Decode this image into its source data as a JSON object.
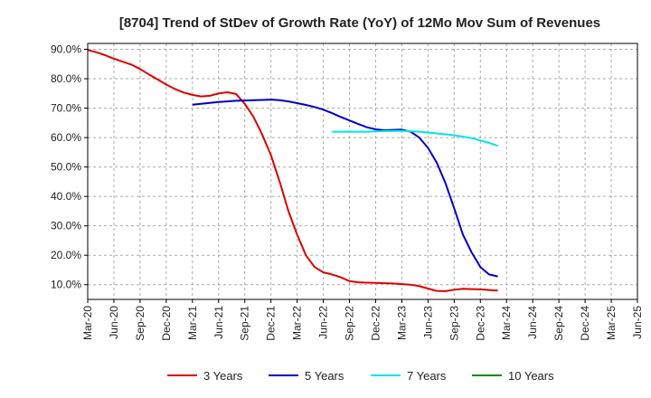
{
  "chart_data": {
    "type": "line",
    "title": "[8704]  Trend of StDev of Growth Rate (YoY) of 12Mo Mov Sum of Revenues",
    "xlabel": "",
    "ylabel": "",
    "x_ticks": [
      "Mar-20",
      "Jun-20",
      "Sep-20",
      "Dec-20",
      "Mar-21",
      "Jun-21",
      "Sep-21",
      "Dec-21",
      "Mar-22",
      "Jun-22",
      "Sep-22",
      "Dec-22",
      "Mar-23",
      "Jun-23",
      "Sep-23",
      "Dec-23",
      "Mar-24",
      "Jun-24",
      "Sep-24",
      "Dec-24",
      "Mar-25",
      "Jun-25"
    ],
    "y_ticks": [
      "10.0%",
      "20.0%",
      "30.0%",
      "40.0%",
      "50.0%",
      "60.0%",
      "70.0%",
      "80.0%",
      "90.0%"
    ],
    "y_tick_values": [
      10,
      20,
      30,
      40,
      50,
      60,
      70,
      80,
      90
    ],
    "ylim": [
      5,
      92
    ],
    "grid": true,
    "legend_position": "bottom",
    "series": [
      {
        "name": "3 Years",
        "color": "#dd0000",
        "points": [
          [
            0,
            89.8
          ],
          [
            1,
            89.0
          ],
          [
            2,
            88.0
          ],
          [
            3,
            86.8
          ],
          [
            4,
            85.8
          ],
          [
            5,
            84.8
          ],
          [
            6,
            83.3
          ],
          [
            7,
            81.5
          ],
          [
            8,
            79.8
          ],
          [
            9,
            78.0
          ],
          [
            10,
            76.5
          ],
          [
            11,
            75.3
          ],
          [
            12,
            74.5
          ],
          [
            13,
            74.0
          ],
          [
            14,
            74.2
          ],
          [
            15,
            75.0
          ],
          [
            16,
            75.4
          ],
          [
            17,
            74.8
          ],
          [
            18,
            71.5
          ],
          [
            19,
            67.0
          ],
          [
            20,
            61.0
          ],
          [
            21,
            54.0
          ],
          [
            22,
            45.0
          ],
          [
            23,
            35.0
          ],
          [
            24,
            27.0
          ],
          [
            25,
            20.0
          ],
          [
            26,
            16.0
          ],
          [
            27,
            14.2
          ],
          [
            28,
            13.5
          ],
          [
            29,
            12.5
          ],
          [
            30,
            11.2
          ],
          [
            31,
            10.8
          ],
          [
            32,
            10.7
          ],
          [
            33,
            10.6
          ],
          [
            34,
            10.5
          ],
          [
            35,
            10.4
          ],
          [
            36,
            10.2
          ],
          [
            37,
            10.0
          ],
          [
            38,
            9.5
          ],
          [
            39,
            8.7
          ],
          [
            40,
            7.9
          ],
          [
            41,
            7.8
          ],
          [
            42,
            8.3
          ],
          [
            43,
            8.6
          ],
          [
            44,
            8.5
          ],
          [
            45,
            8.4
          ],
          [
            46,
            8.2
          ],
          [
            47,
            8.0
          ]
        ]
      },
      {
        "name": "5 Years",
        "color": "#0000cc",
        "points": [
          [
            12,
            71.2
          ],
          [
            13,
            71.5
          ],
          [
            14,
            71.8
          ],
          [
            15,
            72.1
          ],
          [
            16,
            72.3
          ],
          [
            17,
            72.5
          ],
          [
            18,
            72.6
          ],
          [
            19,
            72.7
          ],
          [
            20,
            72.8
          ],
          [
            21,
            72.9
          ],
          [
            22,
            72.7
          ],
          [
            23,
            72.3
          ],
          [
            24,
            71.7
          ],
          [
            25,
            71.1
          ],
          [
            26,
            70.4
          ],
          [
            27,
            69.5
          ],
          [
            28,
            68.3
          ],
          [
            29,
            67.0
          ],
          [
            30,
            65.8
          ],
          [
            31,
            64.6
          ],
          [
            32,
            63.5
          ],
          [
            33,
            62.8
          ],
          [
            34,
            62.5
          ],
          [
            35,
            62.6
          ],
          [
            36,
            62.7
          ],
          [
            37,
            62.0
          ],
          [
            38,
            60.0
          ],
          [
            39,
            56.5
          ],
          [
            40,
            51.5
          ],
          [
            41,
            44.5
          ],
          [
            42,
            36.0
          ],
          [
            43,
            27.0
          ],
          [
            44,
            21.0
          ],
          [
            45,
            16.0
          ],
          [
            46,
            13.5
          ],
          [
            47,
            12.8
          ]
        ]
      },
      {
        "name": "7 Years",
        "color": "#00e5e5",
        "points": [
          [
            28,
            62.0
          ],
          [
            30,
            62.0
          ],
          [
            32,
            62.0
          ],
          [
            34,
            62.2
          ],
          [
            36,
            62.3
          ],
          [
            38,
            62.0
          ],
          [
            40,
            61.4
          ],
          [
            42,
            60.8
          ],
          [
            44,
            59.8
          ],
          [
            46,
            58.2
          ],
          [
            47,
            57.2
          ]
        ]
      },
      {
        "name": "10 Years",
        "color": "#008800",
        "points": []
      }
    ]
  }
}
